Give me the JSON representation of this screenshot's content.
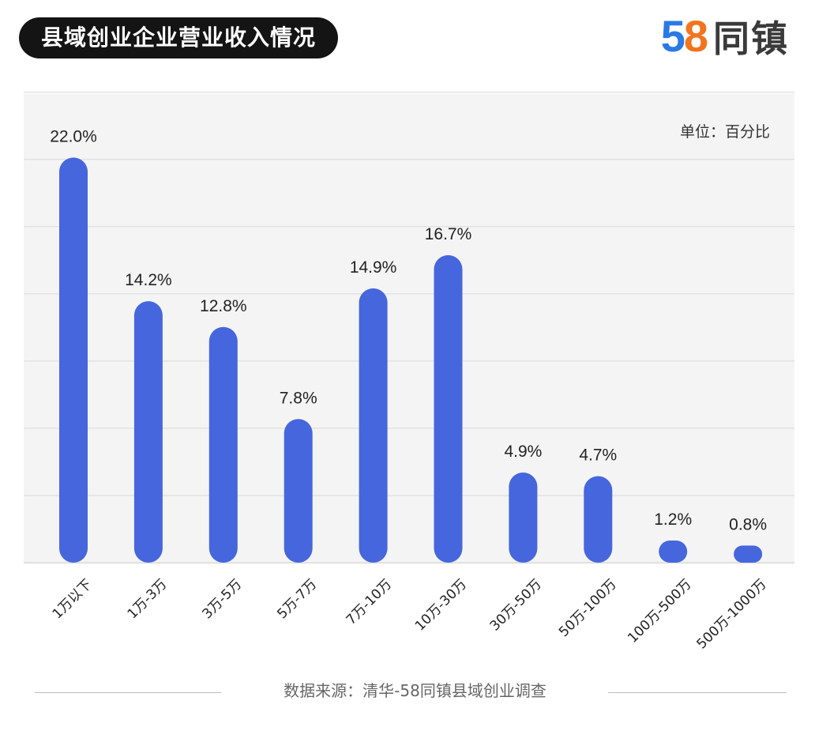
{
  "header": {
    "title": "县域创业企业营业收入情况"
  },
  "logo": {
    "digit1": "5",
    "digit2": "8",
    "text": "同镇"
  },
  "colors": {
    "bar": "#4666dd",
    "grid": "#d9d9d9",
    "panel": "#f4f4f4"
  },
  "unit_label": "单位：百分比",
  "source": "数据来源：清华-58同镇县域创业调查",
  "chart_data": {
    "type": "bar",
    "title": "县域创业企业营业收入情况",
    "xlabel": "",
    "ylabel": "",
    "unit": "百分比",
    "categories": [
      "1万以下",
      "1万-3万",
      "3万-5万",
      "5万-7万",
      "7万-10万",
      "10万-30万",
      "30万-50万",
      "50万-100万",
      "100万-500万",
      "500万-1000万"
    ],
    "values": [
      22.0,
      14.2,
      12.8,
      7.8,
      14.9,
      16.7,
      4.9,
      4.7,
      1.2,
      0.8
    ],
    "labels": [
      "22.0%",
      "14.2%",
      "12.8%",
      "7.8%",
      "14.9%",
      "16.7%",
      "4.9%",
      "4.7%",
      "1.2%",
      "0.8%"
    ],
    "ylim": [
      0,
      24
    ],
    "grid": true
  }
}
